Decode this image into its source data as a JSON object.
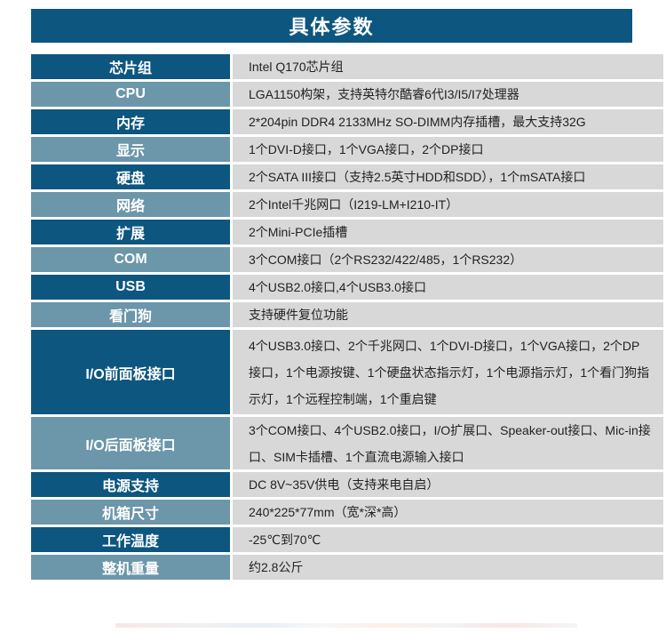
{
  "header": {
    "title": "具体参数",
    "bg": "#0d567f",
    "text_color": "#ffffff"
  },
  "table": {
    "colors": {
      "label_dark_bg": "#0d567f",
      "label_light_bg": "#6c96a9",
      "value_bg": "#d8d8d8",
      "label_text": "#ffffff",
      "value_text": "#222222",
      "row_gap": "#ffffff"
    },
    "rows": [
      {
        "label": "芯片组",
        "value": "Intel Q170芯片组"
      },
      {
        "label": "CPU",
        "value": "LGA1150构架，支持英特尔酷睿6代I3/I5/I7处理器"
      },
      {
        "label": "内存",
        "value": "2*204pin DDR4 2133MHz SO-DIMM内存插槽，最大支持32G"
      },
      {
        "label": "显示",
        "value": "1个DVI-D接口，1个VGA接口，2个DP接口"
      },
      {
        "label": "硬盘",
        "value": "2个SATA III接口（支持2.5英寸HDD和SDD），1个mSATA接口"
      },
      {
        "label": "网络",
        "value": "2个Intel千兆网口（I219-LM+I210-IT）"
      },
      {
        "label": "扩展",
        "value": "2个Mini-PCIe插槽"
      },
      {
        "label": "COM",
        "value": "3个COM接口（2个RS232/422/485，1个RS232）"
      },
      {
        "label": "USB",
        "value": "4个USB2.0接口,4个USB3.0接口"
      },
      {
        "label": "看门狗",
        "value": "支持硬件复位功能"
      },
      {
        "label": "I/O前面板接口",
        "value": "4个USB3.0接口、2个千兆网口、1个DVI-D接口，1个VGA接口，2个DP接口，1个电源按键、1个硬盘状态指示灯，1个电源指示灯，1个看门狗指示灯，1个远程控制端，1个重启键"
      },
      {
        "label": "I/O后面板接口",
        "value": "3个COM接口、4个USB2.0接口，I/O扩展口、Speaker-out接口、Mic-in接口、SIM卡插槽、1个直流电源输入接口"
      },
      {
        "label": "电源支持",
        "value": "DC 8V~35V供电（支持来电自启）"
      },
      {
        "label": "机箱尺寸",
        "value": "240*225*77mm（宽*深*高）"
      },
      {
        "label": "工作温度",
        "value": "-25℃到70℃"
      },
      {
        "label": "整机重量",
        "value": "约2.8公斤"
      }
    ]
  }
}
